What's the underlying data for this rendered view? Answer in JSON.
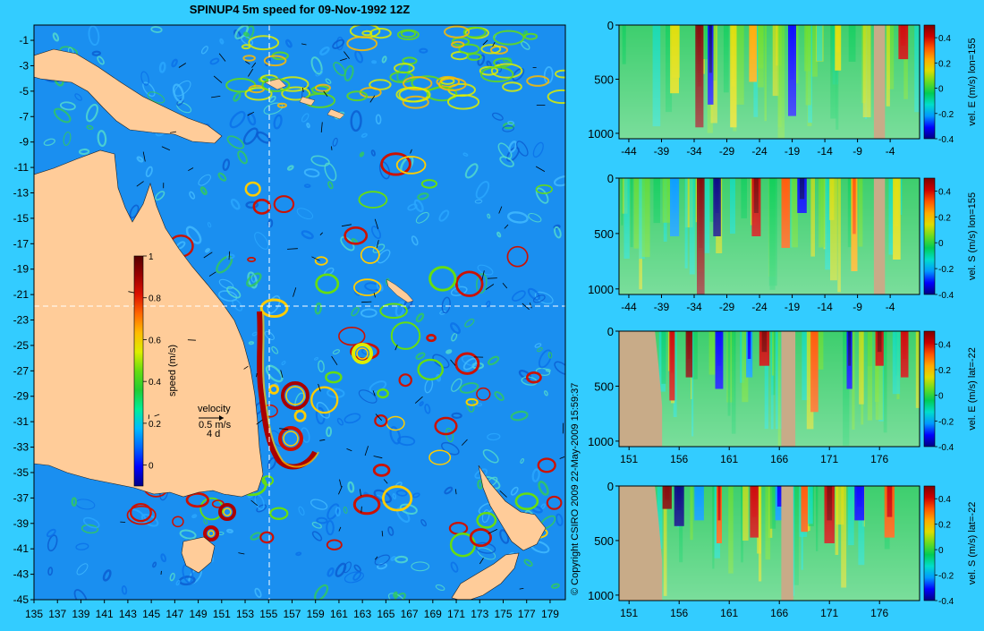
{
  "title": "SPINUP4 5m speed for 09-Nov-1992 12Z",
  "copyright": "© Copyright CSIRO 2009   22-May-2009 15:59:37",
  "colors": {
    "background": "#33ccff",
    "land": "#ffcc99",
    "mask": "#c8ab88",
    "speed_scale": [
      "#000088",
      "#0000ff",
      "#0066ff",
      "#00bbff",
      "#00ee99",
      "#22cc33",
      "#66dd11",
      "#ddee00",
      "#ffbb00",
      "#ff6600",
      "#dd1100",
      "#990000",
      "#550000"
    ],
    "velocity_scale": [
      "#000080",
      "#0000ff",
      "#0099ff",
      "#00ddcc",
      "#00cc55",
      "#66dd22",
      "#dddd00",
      "#ffaa00",
      "#ff5500",
      "#cc0000",
      "#800000"
    ]
  },
  "chart_data": [
    {
      "type": "heatmap",
      "title": "SPINUP4 5m speed for 09-Nov-1992 12Z",
      "x_ticks": [
        "135",
        "137",
        "139",
        "141",
        "143",
        "145",
        "147",
        "149",
        "151",
        "153",
        "155",
        "157",
        "159",
        "161",
        "163",
        "165",
        "167",
        "169",
        "171",
        "173",
        "175",
        "177",
        "179"
      ],
      "y_ticks": [
        "-1",
        "-3",
        "-5",
        "-7",
        "-9",
        "-11",
        "-13",
        "-15",
        "-17",
        "-19",
        "-21",
        "-23",
        "-25",
        "-27",
        "-29",
        "-31",
        "-33",
        "-35",
        "-37",
        "-39",
        "-41",
        "-43",
        "-45"
      ],
      "xlim": [
        135,
        180.3
      ],
      "ylim": [
        -45,
        0.2
      ],
      "section_lines": {
        "lon": 155,
        "lat": -22
      },
      "colorbar": {
        "label": "speed (m/s)",
        "ticks": [
          "0",
          "0.2",
          "0.4",
          "0.6",
          "0.8",
          "1"
        ],
        "range": [
          -0.1,
          1
        ]
      },
      "velocity_key": {
        "label": "velocity",
        "speed": "0.5 m/s",
        "duration": "4 d"
      }
    },
    {
      "type": "heatmap",
      "x_ticks": [
        "-44",
        "-39",
        "-34",
        "-29",
        "-24",
        "-19",
        "-14",
        "-9",
        "-4"
      ],
      "y_ticks": [
        "0",
        "500",
        "1000"
      ],
      "xlim": [
        -45.5,
        0.5
      ],
      "ylim": [
        1050,
        0
      ],
      "mask": [
        [
          -6.5,
          -4.8
        ]
      ],
      "colorbar": {
        "label": "vel. E (m/s) lon=155",
        "ticks": [
          "0.4",
          "0.2",
          "0",
          "-0.2",
          "-0.4"
        ],
        "range": [
          -0.4,
          0.5
        ]
      }
    },
    {
      "type": "heatmap",
      "x_ticks": [
        "-44",
        "-39",
        "-34",
        "-29",
        "-24",
        "-19",
        "-14",
        "-9",
        "-4"
      ],
      "y_ticks": [
        "0",
        "500",
        "1000"
      ],
      "xlim": [
        -45.5,
        0.5
      ],
      "ylim": [
        1050,
        0
      ],
      "mask": [
        [
          -6.5,
          -4.8
        ]
      ],
      "colorbar": {
        "label": "vel. S (m/s) lon=155",
        "ticks": [
          "0.4",
          "0.2",
          "0",
          "-0.2",
          "-0.4"
        ],
        "range": [
          -0.4,
          0.5
        ]
      }
    },
    {
      "type": "heatmap",
      "x_ticks": [
        "151",
        "156",
        "161",
        "166",
        "171",
        "176"
      ],
      "y_ticks": [
        "0",
        "500",
        "1000"
      ],
      "xlim": [
        150,
        180
      ],
      "ylim": [
        1050,
        0
      ],
      "mask": [
        [
          150,
          154.3
        ],
        [
          166.2,
          167.6
        ]
      ],
      "colorbar": {
        "label": "vel. E (m/s) lat=-22",
        "ticks": [
          "0.4",
          "0.2",
          "0",
          "-0.2",
          "-0.4"
        ],
        "range": [
          -0.4,
          0.5
        ]
      }
    },
    {
      "type": "heatmap",
      "x_ticks": [
        "151",
        "156",
        "161",
        "166",
        "171",
        "176"
      ],
      "y_ticks": [
        "0",
        "500",
        "1000"
      ],
      "xlim": [
        150,
        180
      ],
      "ylim": [
        1050,
        0
      ],
      "mask": [
        [
          150,
          154.3
        ],
        [
          166.2,
          167.4
        ]
      ],
      "colorbar": {
        "label": "vel. S (m/s) lat=-22",
        "ticks": [
          "0.4",
          "0.2",
          "0",
          "-0.2",
          "-0.4"
        ],
        "range": [
          -0.4,
          0.5
        ]
      }
    }
  ]
}
